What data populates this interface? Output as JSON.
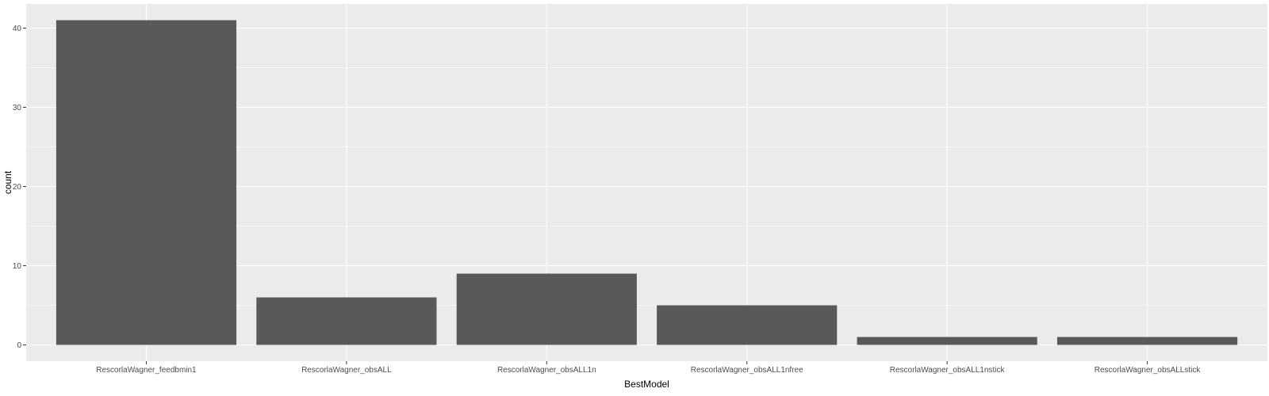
{
  "chart_data": {
    "type": "bar",
    "categories": [
      "RescorlaWagner_feedbmin1",
      "RescorlaWagner_obsALL",
      "RescorlaWagner_obsALL1n",
      "RescorlaWagner_obsALL1nfree",
      "RescorlaWagner_obsALL1nstick",
      "RescorlaWagner_obsALLstick"
    ],
    "values": [
      41,
      6,
      9,
      5,
      1,
      1
    ],
    "xlabel": "BestModel",
    "ylabel": "count",
    "ylim": [
      -2.05,
      43.05
    ],
    "yticks": [
      0,
      10,
      20,
      30,
      40
    ],
    "grid": true,
    "legend": "none",
    "colors": {
      "panel": "#ebebeb",
      "grid_major": "#ffffff",
      "bar": "#595959",
      "tick": "#333333",
      "tick_text": "#4d4d4d"
    }
  }
}
